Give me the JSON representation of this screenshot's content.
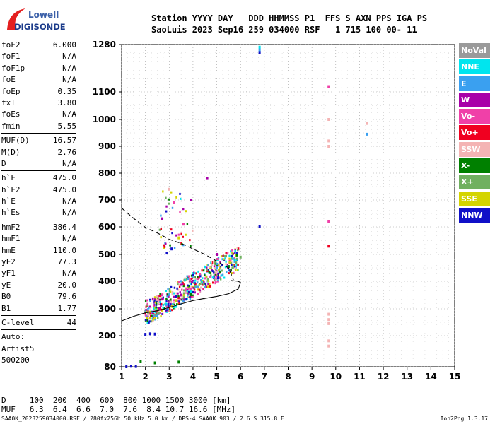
{
  "logo": {
    "line1": "Lowell",
    "line2": "DIGISONDE"
  },
  "header": {
    "line1": "Station YYYY DAY   DDD HHMMSS P1  FFS S AXN PPS IGA PS",
    "line2": "SaoLuis 2023 Sep16 259 034000 RSF   1 715 100 00- 11"
  },
  "params_group1": [
    {
      "name": "foF2",
      "value": "6.000"
    },
    {
      "name": "foF1",
      "value": "N/A"
    },
    {
      "name": "foF1p",
      "value": "N/A"
    },
    {
      "name": "foE",
      "value": "N/A"
    },
    {
      "name": "foEp",
      "value": "0.35"
    },
    {
      "name": "fxI",
      "value": "3.80"
    },
    {
      "name": "foEs",
      "value": "N/A"
    },
    {
      "name": "fmin",
      "value": "5.55"
    }
  ],
  "params_group2": [
    {
      "name": "MUF(D)",
      "value": "16.57"
    },
    {
      "name": "M(D)",
      "value": "2.76"
    },
    {
      "name": "D",
      "value": "N/A"
    }
  ],
  "params_group3": [
    {
      "name": "h`F",
      "value": "475.0"
    },
    {
      "name": "h`F2",
      "value": "475.0"
    },
    {
      "name": "h`E",
      "value": "N/A"
    },
    {
      "name": "h`Es",
      "value": "N/A"
    }
  ],
  "params_group4": [
    {
      "name": "hmF2",
      "value": "386.4"
    },
    {
      "name": "hmF1",
      "value": "N/A"
    },
    {
      "name": "hmE",
      "value": "110.0"
    },
    {
      "name": "yF2",
      "value": "77.3"
    },
    {
      "name": "yF1",
      "value": "N/A"
    },
    {
      "name": "yE",
      "value": "20.0"
    },
    {
      "name": "B0",
      "value": "79.6"
    },
    {
      "name": "B1",
      "value": "1.77"
    }
  ],
  "clevel": {
    "label": "C-level",
    "value": "44"
  },
  "auto": {
    "line1": "Auto:",
    "line2": "Artist5",
    "line3": "500200"
  },
  "legend": [
    {
      "label": "NoVal",
      "color": "#9a9a9a"
    },
    {
      "label": "NNE",
      "color": "#00e5ee"
    },
    {
      "label": "E",
      "color": "#3aa0f0"
    },
    {
      "label": "W",
      "color": "#a800a8"
    },
    {
      "label": "Vo-",
      "color": "#f040a8"
    },
    {
      "label": "Vo+",
      "color": "#f00020"
    },
    {
      "label": "SSW",
      "color": "#f4b4b4"
    },
    {
      "label": "X-",
      "color": "#008000"
    },
    {
      "label": "X+",
      "color": "#70b060"
    },
    {
      "label": "SSE",
      "color": "#d4d400"
    },
    {
      "label": "NNW",
      "color": "#1010c8"
    }
  ],
  "muf_table": {
    "line1": "D     100  200  400  600  800 1000 1500 3000 [km]",
    "line2": "MUF   6.3  6.4  6.6  7.0  7.6  8.4 10.7 16.6 [MHz]"
  },
  "footer": "SAA0K_2023259034000.RSF / 280fx256h 50 kHz 5.0 km / DPS-4 SAA0K 903 / 2.6 S 315.8 E",
  "version": "Ion2Png 1.3.17",
  "chart_data": {
    "type": "scatter",
    "xlabel": "",
    "ylabel": "",
    "xlim": [
      1,
      15
    ],
    "ylim": [
      80,
      1280
    ],
    "x_ticks": [
      1,
      2,
      3,
      4,
      5,
      6,
      7,
      8,
      9,
      10,
      11,
      12,
      13,
      14,
      15
    ],
    "y_ticks": [
      80,
      200,
      300,
      400,
      500,
      600,
      700,
      800,
      900,
      1000,
      1100,
      1280
    ],
    "grid": true,
    "legend_position": "right",
    "series": [
      {
        "name": "NNW",
        "points": [
          [
            1.2,
            80
          ],
          [
            1.4,
            82
          ],
          [
            1.6,
            81
          ],
          [
            2.0,
            205
          ],
          [
            2.2,
            207
          ],
          [
            2.4,
            206
          ],
          [
            2.6,
            320
          ],
          [
            2.9,
            330
          ],
          [
            3.3,
            345
          ],
          [
            3.8,
            360
          ],
          [
            4.3,
            420
          ],
          [
            4.7,
            450
          ],
          [
            5.3,
            480
          ],
          [
            6.8,
            600
          ],
          [
            6.8,
            1250
          ],
          [
            2.9,
            505
          ],
          [
            3.1,
            520
          ]
        ]
      },
      {
        "name": "X-",
        "points": [
          [
            1.8,
            100
          ],
          [
            2.4,
            95
          ],
          [
            3.4,
            98
          ],
          [
            2.8,
            300
          ],
          [
            3.2,
            320
          ],
          [
            3.9,
            350
          ],
          [
            4.5,
            390
          ],
          [
            5.5,
            455
          ]
        ]
      },
      {
        "name": "X+",
        "points": [
          [
            2.5,
            280
          ],
          [
            3.0,
            310
          ],
          [
            3.6,
            340
          ],
          [
            4.1,
            380
          ],
          [
            4.9,
            430
          ],
          [
            5.6,
            470
          ],
          [
            6.0,
            490
          ]
        ]
      },
      {
        "name": "SSE",
        "points": [
          [
            2.2,
            265
          ],
          [
            2.7,
            295
          ],
          [
            3.3,
            330
          ],
          [
            3.8,
            355
          ],
          [
            4.4,
            400
          ],
          [
            5.2,
            460
          ],
          [
            5.8,
            495
          ],
          [
            3.4,
            560
          ]
        ]
      },
      {
        "name": "W",
        "points": [
          [
            2.3,
            285
          ],
          [
            3.0,
            325
          ],
          [
            3.5,
            350
          ],
          [
            4.0,
            400
          ],
          [
            4.6,
            780
          ],
          [
            3.9,
            700
          ],
          [
            2.7,
            630
          ],
          [
            5.0,
            500
          ]
        ]
      },
      {
        "name": "Vo-",
        "points": [
          [
            2.4,
            275
          ],
          [
            3.1,
            315
          ],
          [
            3.7,
            360
          ],
          [
            4.2,
            410
          ],
          [
            3.2,
            690
          ],
          [
            3.6,
            610
          ],
          [
            9.7,
            620
          ],
          [
            9.7,
            1120
          ]
        ]
      },
      {
        "name": "Vo+",
        "points": [
          [
            2.6,
            300
          ],
          [
            3.4,
            340
          ],
          [
            4.1,
            390
          ],
          [
            4.8,
            470
          ],
          [
            5.4,
            505
          ],
          [
            5.9,
            520
          ],
          [
            9.7,
            530
          ]
        ]
      },
      {
        "name": "SSW",
        "points": [
          [
            9.7,
            245
          ],
          [
            9.7,
            260
          ],
          [
            9.7,
            280
          ],
          [
            9.7,
            160
          ],
          [
            9.7,
            180
          ],
          [
            9.7,
            900
          ],
          [
            9.7,
            920
          ],
          [
            9.7,
            1000
          ],
          [
            11.3,
            985
          ],
          [
            3.0,
            740
          ]
        ]
      },
      {
        "name": "E",
        "points": [
          [
            2.9,
            315
          ],
          [
            3.6,
            330
          ],
          [
            4.4,
            390
          ],
          [
            5.1,
            440
          ],
          [
            11.3,
            945
          ],
          [
            6.8,
            1260
          ]
        ]
      },
      {
        "name": "NNE",
        "points": [
          [
            2.1,
            250
          ],
          [
            2.9,
            290
          ],
          [
            6.8,
            1270
          ]
        ]
      },
      {
        "name": "NoVal",
        "points": [
          [
            2.0,
            290
          ],
          [
            3.5,
            300
          ]
        ]
      }
    ],
    "profile_curve": {
      "name": "profile",
      "x": [
        1.0,
        1.5,
        2.0,
        2.5,
        3.0,
        3.5,
        4.0,
        4.5,
        5.0,
        5.5,
        5.9,
        6.0,
        5.9,
        5.6
      ],
      "y": [
        255,
        272,
        285,
        293,
        305,
        318,
        330,
        338,
        345,
        355,
        372,
        395,
        400,
        403
      ]
    },
    "dashed_curve": {
      "name": "trace",
      "x": [
        1.0,
        1.5,
        2.0,
        2.5,
        3.0,
        3.5,
        4.0,
        4.5,
        5.0,
        5.5,
        5.7
      ],
      "y": [
        670,
        632,
        598,
        578,
        555,
        540,
        520,
        500,
        475,
        450,
        405
      ]
    }
  }
}
